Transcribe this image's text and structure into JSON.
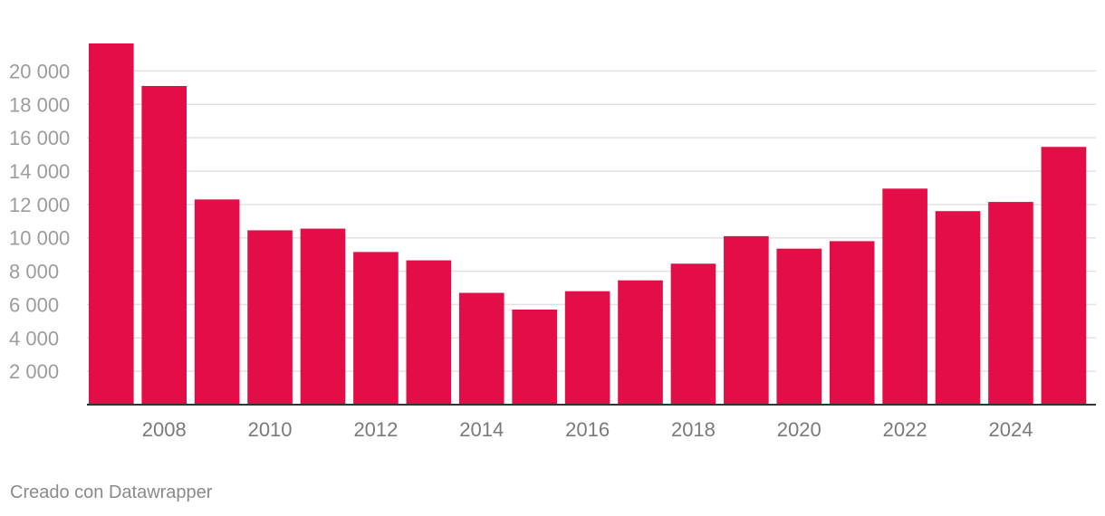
{
  "colors": {
    "bar": "#e30e47"
  },
  "footer": {
    "credit": "Creado con Datawrapper"
  },
  "chart_data": {
    "type": "bar",
    "title": "",
    "xlabel": "",
    "ylabel": "",
    "categories": [
      "2007",
      "2008",
      "2009",
      "2010",
      "2011",
      "2012",
      "2013",
      "2014",
      "2015",
      "2016",
      "2017",
      "2018",
      "2019",
      "2020",
      "2021",
      "2022",
      "2023",
      "2024",
      "2025"
    ],
    "values": [
      21650,
      19100,
      12300,
      10450,
      10550,
      9150,
      8650,
      6700,
      5700,
      6800,
      7450,
      8450,
      10100,
      9350,
      9800,
      12950,
      11600,
      12150,
      15450
    ],
    "ylim": [
      0,
      21650
    ],
    "y_ticks": [
      2000,
      4000,
      6000,
      8000,
      10000,
      12000,
      14000,
      16000,
      18000,
      20000
    ],
    "y_tick_labels": [
      "2 000",
      "4 000",
      "6 000",
      "8 000",
      "10 000",
      "12 000",
      "14 000",
      "16 000",
      "18 000",
      "20 000"
    ],
    "x_tick_labels": [
      "2008",
      "2010",
      "2012",
      "2014",
      "2016",
      "2018",
      "2020",
      "2022",
      "2024"
    ],
    "grid": true,
    "legend": "none"
  }
}
